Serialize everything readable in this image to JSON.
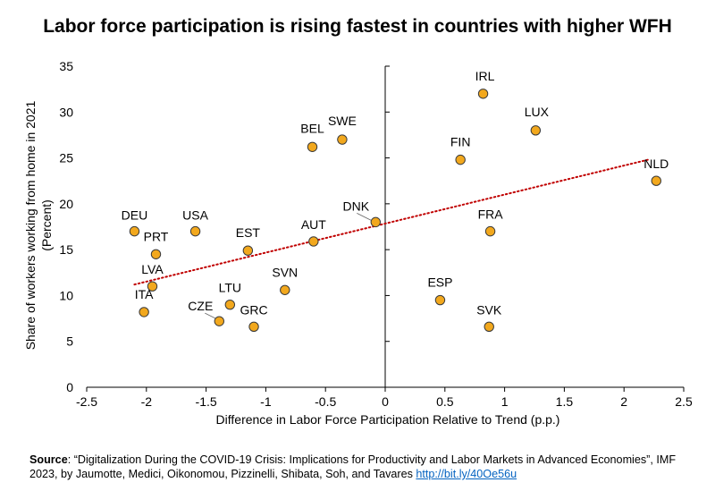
{
  "chart_data": {
    "type": "scatter",
    "title": "Labor force participation is rising fastest in countries with higher WFH",
    "xlabel": "Difference in Labor Force Participation Relative to Trend (p.p.)",
    "ylabel": "Share of workers working from home in 2021",
    "ylabel_unit": "(Percent)",
    "xlim": [
      -2.5,
      2.5
    ],
    "ylim": [
      0,
      35
    ],
    "xticks": [
      -2.5,
      -2,
      -1.5,
      -1,
      -0.5,
      0,
      0.5,
      1,
      1.5,
      2,
      2.5
    ],
    "xtick_labels": [
      "-2.5",
      "-2",
      "-1.5",
      "-1",
      "-0.5",
      "0",
      "0.5",
      "1",
      "1.5",
      "2",
      "2.5"
    ],
    "yticks": [
      0,
      5,
      10,
      15,
      20,
      25,
      30,
      35
    ],
    "ytick_labels": [
      "0",
      "5",
      "10",
      "15",
      "20",
      "25",
      "30",
      "35"
    ],
    "grid": false,
    "point_color": "#f2a81d",
    "trend_color": "#c00000",
    "points": [
      {
        "label": "IRL",
        "x": 0.82,
        "y": 32.0
      },
      {
        "label": "LUX",
        "x": 1.26,
        "y": 28.0
      },
      {
        "label": "FIN",
        "x": 0.63,
        "y": 24.8
      },
      {
        "label": "NLD",
        "x": 2.27,
        "y": 22.5
      },
      {
        "label": "BEL",
        "x": -0.61,
        "y": 26.2
      },
      {
        "label": "SWE",
        "x": -0.36,
        "y": 27.0
      },
      {
        "label": "DNK",
        "x": -0.08,
        "y": 18.0
      },
      {
        "label": "FRA",
        "x": 0.88,
        "y": 17.0
      },
      {
        "label": "DEU",
        "x": -2.1,
        "y": 17.0
      },
      {
        "label": "USA",
        "x": -1.59,
        "y": 17.0
      },
      {
        "label": "PRT",
        "x": -1.92,
        "y": 14.5
      },
      {
        "label": "EST",
        "x": -1.15,
        "y": 14.9
      },
      {
        "label": "AUT",
        "x": -0.6,
        "y": 15.9
      },
      {
        "label": "LVA",
        "x": -1.95,
        "y": 11.0
      },
      {
        "label": "ITA",
        "x": -2.02,
        "y": 8.2
      },
      {
        "label": "SVN",
        "x": -0.84,
        "y": 10.6
      },
      {
        "label": "LTU",
        "x": -1.3,
        "y": 9.0
      },
      {
        "label": "CZE",
        "x": -1.39,
        "y": 7.2
      },
      {
        "label": "GRC",
        "x": -1.1,
        "y": 6.6
      },
      {
        "label": "ESP",
        "x": 0.46,
        "y": 9.5
      },
      {
        "label": "SVK",
        "x": 0.87,
        "y": 6.6
      }
    ],
    "trendline": {
      "x": [
        -2.1,
        2.2
      ],
      "y": [
        11.2,
        24.8
      ]
    }
  },
  "source": {
    "label": "Source",
    "text": ": “Digitalization During the COVID-19 Crisis: Implications for Productivity and Labor Markets in Advanced Economies”, IMF 2023, by Jaumotte, Medici, Oikonomou, Pizzinelli, Shibata, Soh, and Tavares ",
    "link": "http://bit.ly/40Oe56u"
  }
}
